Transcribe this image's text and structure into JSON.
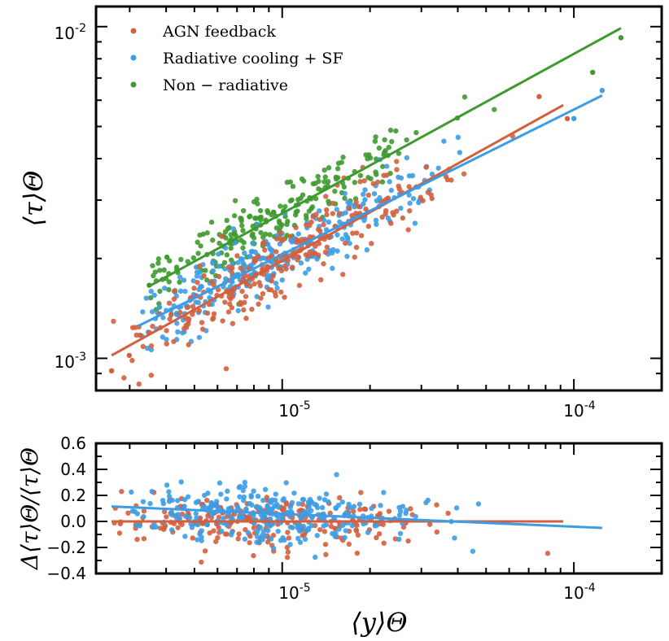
{
  "chart_data": [
    {
      "type": "scatter",
      "panel": "main",
      "xscale": "log",
      "yscale": "log",
      "xlim": [
        2.3e-06,
        0.0002
      ],
      "ylim": [
        0.0008,
        0.0115
      ],
      "ylabel": "⟨τ⟩Θ",
      "xlabel": "",
      "legend_position": "top-left",
      "x_ticks": [
        {
          "value": 1e-05,
          "label": "10-5",
          "base": "10",
          "exp": "-5"
        },
        {
          "value": 0.0001,
          "label": "10-4",
          "base": "10",
          "exp": "-4"
        }
      ],
      "y_ticks": [
        {
          "value": 0.001,
          "label": "10-3",
          "base": "10",
          "exp": "-3"
        },
        {
          "value": 0.01,
          "label": "10-2",
          "base": "10",
          "exp": "-2"
        }
      ],
      "series": [
        {
          "name": "AGN feedback",
          "color": "#d45f3d",
          "fit": {
            "x": [
              2.6e-06,
              9.2e-05
            ],
            "y": [
              0.00102,
              0.0058
            ]
          },
          "points_summary": {
            "n": 260,
            "x_range": [
              2.6e-06,
              9.5e-05
            ],
            "relation": "τ ≈ 1.02e-3·(y/2.6e-6)^0.49",
            "scatter_dex": 0.06
          }
        },
        {
          "name": "Radiative cooling + SF",
          "color": "#3c9de6",
          "fit": {
            "x": [
              3.2e-06,
              0.000125
            ],
            "y": [
              0.00125,
              0.0062
            ]
          },
          "points_summary": {
            "n": 300,
            "x_range": [
              3.3e-06,
              0.000125
            ],
            "relation": "τ ≈ 1.25e-3·(y/3.2e-6)^0.44",
            "scatter_dex": 0.05
          }
        },
        {
          "name": "Non − radiative",
          "color": "#3e9a2e",
          "fit": {
            "x": [
              3.5e-06,
              0.000145
            ],
            "y": [
              0.00165,
              0.0099
            ]
          },
          "points_summary": {
            "n": 230,
            "x_range": [
              3.5e-06,
              0.000145
            ],
            "relation": "τ ≈ 1.65e-3·(y/3.5e-6)^0.48",
            "scatter_dex": 0.05
          }
        }
      ],
      "legend": [
        {
          "label": "AGN feedback",
          "color": "#d45f3d"
        },
        {
          "label": "Radiative cooling + SF",
          "color": "#3c9de6"
        },
        {
          "label": "Non − radiative",
          "color": "#3e9a2e"
        }
      ]
    },
    {
      "type": "scatter",
      "panel": "residual",
      "xscale": "log",
      "yscale": "linear",
      "xlim": [
        2.3e-06,
        0.0002
      ],
      "ylim": [
        -0.4,
        0.6
      ],
      "ylabel": "Δ⟨τ⟩Θ/⟨τ⟩Θ",
      "xlabel": "⟨y⟩Θ",
      "x_ticks": [
        {
          "value": 1e-05,
          "label": "10-5",
          "base": "10",
          "exp": "-5"
        },
        {
          "value": 0.0001,
          "label": "10-4",
          "base": "10",
          "exp": "-4"
        }
      ],
      "y_ticks": [
        {
          "value": 0.6,
          "label": "0.6"
        },
        {
          "value": 0.4,
          "label": "0.4"
        },
        {
          "value": 0.2,
          "label": "0.2"
        },
        {
          "value": 0.0,
          "label": "0.0"
        },
        {
          "value": -0.2,
          "label": "−0.2"
        },
        {
          "value": -0.4,
          "label": "−0.4"
        }
      ],
      "series": [
        {
          "name": "AGN feedback",
          "color": "#d45f3d",
          "fit": {
            "x": [
              2.6e-06,
              9.2e-05
            ],
            "y": [
              0.0,
              0.0
            ]
          },
          "points_summary": {
            "n": 260,
            "x_range": [
              2.6e-06,
              9.5e-05
            ],
            "y_spread": 0.1
          }
        },
        {
          "name": "Radiative cooling + SF",
          "color": "#3c9de6",
          "fit": {
            "x": [
              2.6e-06,
              0.000125
            ],
            "y": [
              0.115,
              -0.05
            ]
          },
          "points_summary": {
            "n": 300,
            "x_range": [
              3e-06,
              0.000125
            ],
            "y_spread": 0.1
          }
        }
      ]
    }
  ]
}
